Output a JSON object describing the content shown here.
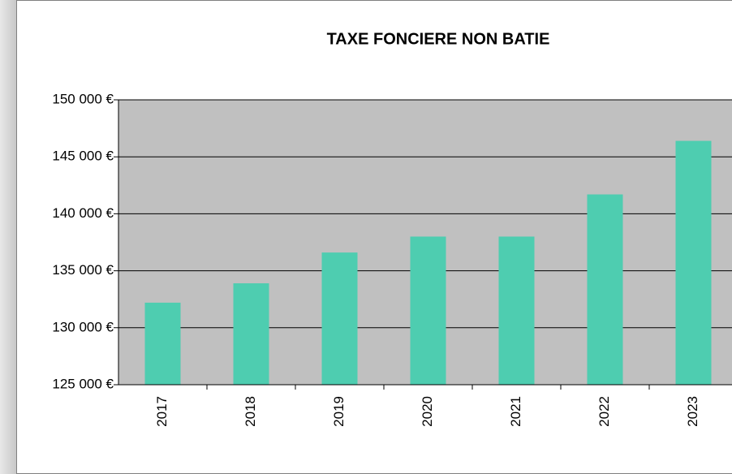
{
  "chart_data": {
    "type": "bar",
    "title": "TAXE FONCIERE NON BATIE",
    "categories": [
      "2017",
      "2018",
      "2019",
      "2020",
      "2021",
      "2022",
      "2023"
    ],
    "values": [
      132200,
      133900,
      136600,
      138000,
      138000,
      141700,
      146400
    ],
    "color": "#4ecdb0",
    "plot_background": "#c0c0c0",
    "ylim": [
      125000,
      150000
    ],
    "yticks": [
      {
        "value": 125000,
        "label": "125 000 €"
      },
      {
        "value": 130000,
        "label": "130 000 €"
      },
      {
        "value": 135000,
        "label": "135 000 €"
      },
      {
        "value": 140000,
        "label": "140 000 €"
      },
      {
        "value": 145000,
        "label": "145 000 €"
      },
      {
        "value": 150000,
        "label": "150 000 €"
      }
    ],
    "grid": true
  }
}
